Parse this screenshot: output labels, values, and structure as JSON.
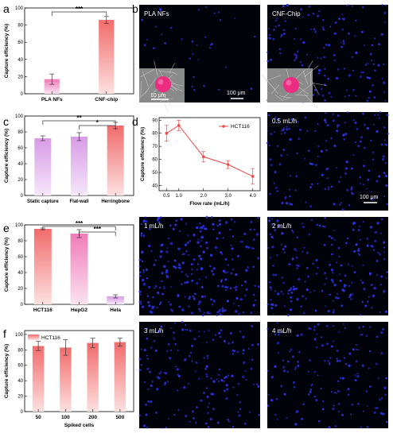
{
  "panels": {
    "a": {
      "letter": "a"
    },
    "b": {
      "letter": "b",
      "img_left_label": "PLA NFs",
      "img_right_label": "CNF-Chip",
      "scale_bar_main": "100 μm",
      "scale_bar_inset": "10 μm"
    },
    "c": {
      "letter": "c"
    },
    "d": {
      "letter": "d",
      "scale_bar": "100 μm",
      "img_labels": [
        "0.5 mL/h",
        "1 mL/h",
        "2 mL/h",
        "3 mL/h",
        "4 mL/h"
      ]
    },
    "e": {
      "letter": "e"
    },
    "f": {
      "letter": "f"
    }
  },
  "colors": {
    "bar_red_top": "#f26b6b",
    "bar_red_bottom": "#fde0e0",
    "bar_pink_top": "#f07ab8",
    "bar_pink_bottom": "#fbe3f1",
    "bar_purple_top": "#d89be6",
    "bar_purple_bottom": "#f5e6fa",
    "line_red": "#f04848",
    "image_bg": "#02020a",
    "cell_blue": "#2a36e6"
  },
  "chart_data": [
    {
      "id": "a",
      "type": "bar",
      "categories": [
        "PLA NFs",
        "CNF-chip"
      ],
      "values": [
        17,
        86
      ],
      "errors": [
        6,
        4
      ],
      "ylabel": "Capture efficiency (%)",
      "ylim": [
        0,
        100
      ],
      "yticks": [
        "0",
        "20",
        "40",
        "60",
        "80",
        "100"
      ],
      "significance": [
        {
          "from": 0,
          "to": 1,
          "label": "***"
        }
      ]
    },
    {
      "id": "c",
      "type": "bar",
      "categories": [
        "Static capture",
        "Flat-wall",
        "Herringbone"
      ],
      "values": [
        72,
        74,
        88
      ],
      "errors": [
        3,
        5,
        4
      ],
      "ylabel": "Capture efficiency (%)",
      "ylim": [
        0,
        100
      ],
      "yticks": [
        "0",
        "20",
        "40",
        "60",
        "80",
        "100"
      ],
      "significance": [
        {
          "from": 0,
          "to": 2,
          "label": "**"
        },
        {
          "from": 1,
          "to": 2,
          "label": "*"
        }
      ]
    },
    {
      "id": "d",
      "type": "line",
      "x": [
        0.5,
        1.0,
        2.0,
        3.0,
        4.0
      ],
      "values": [
        80,
        86,
        62,
        56,
        47
      ],
      "errors": [
        6,
        4,
        4,
        3,
        6
      ],
      "series_name": "HCT116",
      "xlabel": "Flow rate (mL/h)",
      "ylabel": "Capture efficiency (%)",
      "xlim": [
        0.2,
        4.3
      ],
      "ylim": [
        36,
        92
      ],
      "xticks": [
        "0.5",
        "1.0",
        "2.0",
        "3.0",
        "4.0"
      ],
      "yticks": [
        "40",
        "50",
        "60",
        "70",
        "80",
        "90"
      ],
      "legend": "top-right"
    },
    {
      "id": "e",
      "type": "bar",
      "categories": [
        "HCT116",
        "HepG2",
        "Hela"
      ],
      "values": [
        95,
        89,
        10
      ],
      "errors": [
        1,
        5,
        2
      ],
      "ylabel": "Capture efficiency (%)",
      "ylim": [
        0,
        100
      ],
      "yticks": [
        "0",
        "20",
        "40",
        "60",
        "80",
        "100"
      ],
      "significance": [
        {
          "from": 0,
          "to": 2,
          "label": "***"
        },
        {
          "from": 1,
          "to": 2,
          "label": "***"
        }
      ]
    },
    {
      "id": "f",
      "type": "bar",
      "categories": [
        "50",
        "100",
        "200",
        "500"
      ],
      "values": [
        85,
        83,
        89,
        90
      ],
      "errors": [
        6,
        10,
        6,
        5
      ],
      "series_name": "HCT116",
      "xlabel": "Spiked cells",
      "ylabel": "Capture efficiency (%)",
      "ylim": [
        0,
        105
      ],
      "yticks": [
        "0",
        "20",
        "40",
        "60",
        "80",
        "100"
      ],
      "legend": "top-left"
    }
  ]
}
